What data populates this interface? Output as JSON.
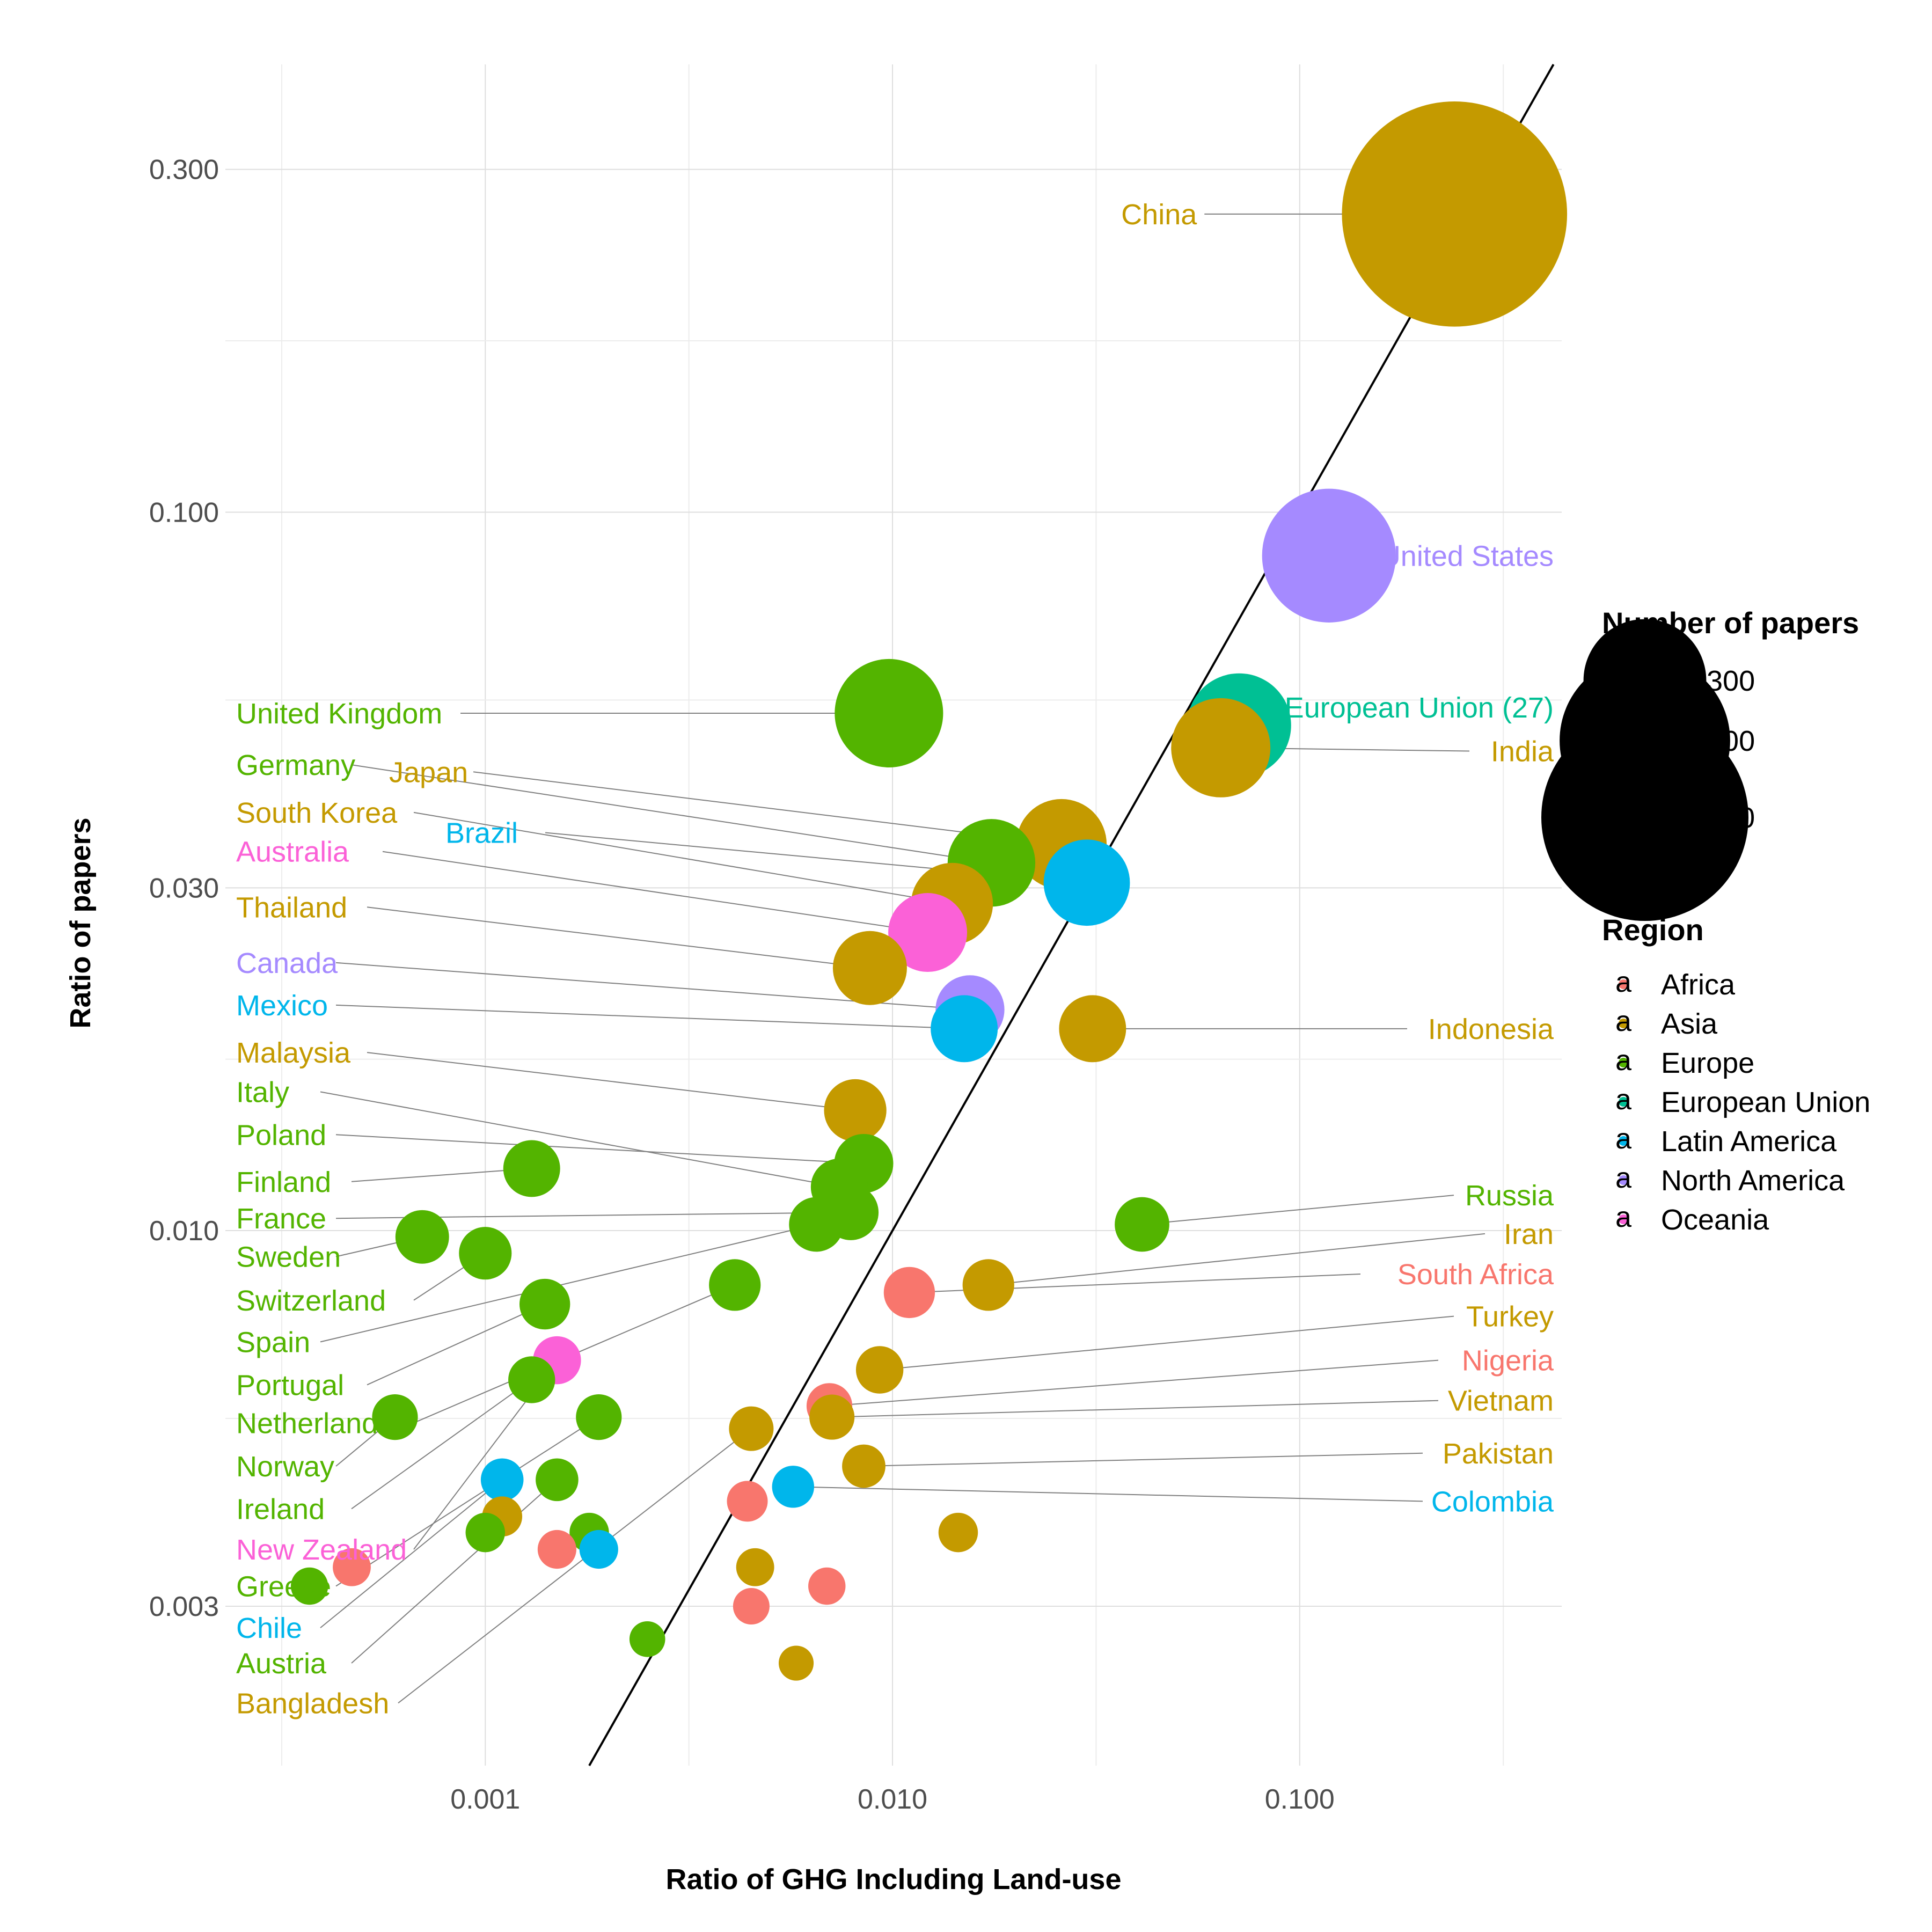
{
  "chart_data": {
    "type": "scatter",
    "title": "",
    "xlabel": "Ratio of GHG Including Land-use",
    "ylabel": "Ratio of papers",
    "x_scale": "log",
    "y_scale": "log",
    "xlim": [
      0.00023,
      0.44
    ],
    "ylim": [
      0.0018,
      0.42
    ],
    "x_ticks": [
      0.001,
      0.01,
      0.1
    ],
    "x_tick_labels": [
      "0.001",
      "0.010",
      "0.100"
    ],
    "y_ticks": [
      0.003,
      0.01,
      0.03,
      0.1,
      0.3
    ],
    "y_tick_labels": [
      "0.003",
      "0.010",
      "0.030",
      "0.100",
      "0.300"
    ],
    "grid": true,
    "reference_line": "y = x",
    "regions": [
      {
        "name": "Africa",
        "color": "#F8766D"
      },
      {
        "name": "Asia",
        "color": "#C49A00"
      },
      {
        "name": "Europe",
        "color": "#53B400"
      },
      {
        "name": "European Union",
        "color": "#00C094"
      },
      {
        "name": "Latin America",
        "color": "#00B6EB"
      },
      {
        "name": "North America",
        "color": "#A58AFF"
      },
      {
        "name": "Oceania",
        "color": "#FB61D7"
      }
    ],
    "legend": {
      "size_title": "Number of papers",
      "size_breaks": [
        300,
        600,
        900
      ],
      "size_labels": [
        "300",
        "600",
        "900"
      ],
      "color_title": "Region",
      "key_glyph": "a",
      "position": "right"
    },
    "points": [
      {
        "label": "China",
        "region": "Asia",
        "x": 0.24,
        "y": 0.26,
        "papers": 1070
      },
      {
        "label": "United States",
        "region": "North America",
        "x": 0.118,
        "y": 0.087,
        "papers": 360
      },
      {
        "label": "European Union (27)",
        "region": "European Union",
        "x": 0.071,
        "y": 0.0505,
        "papers": 210
      },
      {
        "label": "India",
        "region": "Asia",
        "x": 0.064,
        "y": 0.047,
        "papers": 190
      },
      {
        "label": "United Kingdom",
        "region": "Europe",
        "x": 0.0098,
        "y": 0.0525,
        "papers": 230
      },
      {
        "label": "Japan",
        "region": "Asia",
        "x": 0.026,
        "y": 0.0345,
        "papers": 155
      },
      {
        "label": "Germany",
        "region": "Europe",
        "x": 0.0175,
        "y": 0.0325,
        "papers": 145
      },
      {
        "label": "Brazil",
        "region": "Latin America",
        "x": 0.03,
        "y": 0.0305,
        "papers": 140
      },
      {
        "label": "South Korea",
        "region": "Asia",
        "x": 0.014,
        "y": 0.0285,
        "papers": 125
      },
      {
        "label": "Australia",
        "region": "Oceania",
        "x": 0.0122,
        "y": 0.026,
        "papers": 115
      },
      {
        "label": "Thailand",
        "region": "Asia",
        "x": 0.0088,
        "y": 0.0232,
        "papers": 100
      },
      {
        "label": "Canada",
        "region": "North America",
        "x": 0.0155,
        "y": 0.0203,
        "papers": 85
      },
      {
        "label": "Mexico",
        "region": "Latin America",
        "x": 0.015,
        "y": 0.0191,
        "papers": 80
      },
      {
        "label": "Indonesia",
        "region": "Asia",
        "x": 0.031,
        "y": 0.0191,
        "papers": 80
      },
      {
        "label": "Malaysia",
        "region": "Asia",
        "x": 0.0081,
        "y": 0.0147,
        "papers": 68
      },
      {
        "label": "Poland",
        "region": "Europe",
        "x": 0.0085,
        "y": 0.0124,
        "papers": 60
      },
      {
        "label": "Italy",
        "region": "Europe",
        "x": 0.0074,
        "y": 0.0115,
        "papers": 55
      },
      {
        "label": "Finland",
        "region": "Europe",
        "x": 0.0013,
        "y": 0.0122,
        "papers": 55
      },
      {
        "label": "France",
        "region": "Europe",
        "x": 0.0079,
        "y": 0.0106,
        "papers": 52
      },
      {
        "label": "Spain",
        "region": "Europe",
        "x": 0.0065,
        "y": 0.0102,
        "papers": 50
      },
      {
        "label": "Sweden",
        "region": "Europe",
        "x": 0.0007,
        "y": 0.0098,
        "papers": 48
      },
      {
        "label": "Russia",
        "region": "Europe",
        "x": 0.041,
        "y": 0.0102,
        "papers": 50
      },
      {
        "label": "Switzerland",
        "region": "Europe",
        "x": 0.001,
        "y": 0.0093,
        "papers": 46
      },
      {
        "label": "Portugal",
        "region": "Europe",
        "x": 0.0014,
        "y": 0.0079,
        "papers": 42
      },
      {
        "label": "Netherlands",
        "region": "Europe",
        "x": 0.0041,
        "y": 0.0084,
        "papers": 44
      },
      {
        "label": "Iran",
        "region": "Asia",
        "x": 0.0172,
        "y": 0.0084,
        "papers": 44
      },
      {
        "label": "South Africa",
        "region": "Africa",
        "x": 0.011,
        "y": 0.0082,
        "papers": 43
      },
      {
        "label": "Turkey",
        "region": "Asia",
        "x": 0.0093,
        "y": 0.0064,
        "papers": 36
      },
      {
        "label": "New Zealand",
        "region": "Oceania",
        "x": 0.0015,
        "y": 0.0066,
        "papers": 37
      },
      {
        "label": "Ireland",
        "region": "Europe",
        "x": 0.0013,
        "y": 0.0062,
        "papers": 35
      },
      {
        "label": "Norway",
        "region": "Europe",
        "x": 0.0006,
        "y": 0.0055,
        "papers": 33
      },
      {
        "label": "Greece",
        "region": "Europe",
        "x": 0.0019,
        "y": 0.0055,
        "papers": 33
      },
      {
        "label": "Nigeria",
        "region": "Africa",
        "x": 0.007,
        "y": 0.0057,
        "papers": 33
      },
      {
        "label": "Vietnam",
        "region": "Asia",
        "x": 0.0071,
        "y": 0.0055,
        "papers": 32
      },
      {
        "label": "Bangladesh",
        "region": "Asia",
        "x": 0.0045,
        "y": 0.0053,
        "papers": 31
      },
      {
        "label": "Pakistan",
        "region": "Asia",
        "x": 0.0085,
        "y": 0.0047,
        "papers": 29
      },
      {
        "label": "Austria",
        "region": "Europe",
        "x": 0.0015,
        "y": 0.0045,
        "papers": 28
      },
      {
        "label": "Chile",
        "region": "Latin America",
        "x": 0.0011,
        "y": 0.0045,
        "papers": 28
      },
      {
        "label": "Colombia",
        "region": "Latin America",
        "x": 0.0057,
        "y": 0.0044,
        "papers": 27
      },
      {
        "label": "",
        "region": "Africa",
        "x": 0.0044,
        "y": 0.0042,
        "papers": 25
      },
      {
        "label": "",
        "region": "Asia",
        "x": 0.0011,
        "y": 0.004,
        "papers": 24
      },
      {
        "label": "",
        "region": "Europe",
        "x": 0.001,
        "y": 0.0038,
        "papers": 23
      },
      {
        "label": "",
        "region": "Europe",
        "x": 0.0018,
        "y": 0.0038,
        "papers": 23
      },
      {
        "label": "",
        "region": "Asia",
        "x": 0.0145,
        "y": 0.0038,
        "papers": 23
      },
      {
        "label": "",
        "region": "Africa",
        "x": 0.0015,
        "y": 0.0036,
        "papers": 22
      },
      {
        "label": "",
        "region": "Latin America",
        "x": 0.0019,
        "y": 0.0036,
        "papers": 22
      },
      {
        "label": "",
        "region": "Africa",
        "x": 0.00047,
        "y": 0.0034,
        "papers": 21
      },
      {
        "label": "",
        "region": "Asia",
        "x": 0.0046,
        "y": 0.0034,
        "papers": 21
      },
      {
        "label": "",
        "region": "Europe",
        "x": 0.00037,
        "y": 0.0032,
        "papers": 20
      },
      {
        "label": "",
        "region": "Africa",
        "x": 0.0069,
        "y": 0.0032,
        "papers": 20
      },
      {
        "label": "",
        "region": "Africa",
        "x": 0.0045,
        "y": 0.003,
        "papers": 19
      },
      {
        "label": "",
        "region": "Europe",
        "x": 0.0025,
        "y": 0.0027,
        "papers": 18
      },
      {
        "label": "",
        "region": "Asia",
        "x": 0.0058,
        "y": 0.0025,
        "papers": 17
      }
    ],
    "labels": [
      {
        "label": "China",
        "region": "Asia",
        "side": "left",
        "y": 0.26
      },
      {
        "label": "United States",
        "region": "North America",
        "side": "right",
        "y": 0.087
      },
      {
        "label": "European Union (27)",
        "region": "European Union",
        "side": "right",
        "y": 0.0535
      },
      {
        "label": "India",
        "region": "Asia",
        "side": "right",
        "y": 0.0465
      },
      {
        "label": "United Kingdom",
        "region": "Europe",
        "side": "left",
        "y": 0.0525
      },
      {
        "label": "Germany",
        "region": "Europe",
        "side": "left",
        "y": 0.0445
      },
      {
        "label": "Japan",
        "region": "Asia",
        "side": "left",
        "y": 0.0435,
        "indent": true
      },
      {
        "label": "South Korea",
        "region": "Asia",
        "side": "left",
        "y": 0.0382
      },
      {
        "label": "Brazil",
        "region": "Latin America",
        "side": "left",
        "y": 0.0358,
        "indent": true
      },
      {
        "label": "Australia",
        "region": "Oceania",
        "side": "left",
        "y": 0.0337
      },
      {
        "label": "Thailand",
        "region": "Asia",
        "side": "left",
        "y": 0.0282
      },
      {
        "label": "Canada",
        "region": "North America",
        "side": "left",
        "y": 0.0236
      },
      {
        "label": "Mexico",
        "region": "Latin America",
        "side": "left",
        "y": 0.0206
      },
      {
        "label": "Indonesia",
        "region": "Asia",
        "side": "right",
        "y": 0.0191
      },
      {
        "label": "Malaysia",
        "region": "Asia",
        "side": "left",
        "y": 0.0177
      },
      {
        "label": "Italy",
        "region": "Europe",
        "side": "left",
        "y": 0.0156
      },
      {
        "label": "Poland",
        "region": "Europe",
        "side": "left",
        "y": 0.0136
      },
      {
        "label": "Finland",
        "region": "Europe",
        "side": "left",
        "y": 0.0117
      },
      {
        "label": "France",
        "region": "Europe",
        "side": "left",
        "y": 0.0104
      },
      {
        "label": "Sweden",
        "region": "Europe",
        "side": "left",
        "y": 0.0092
      },
      {
        "label": "Russia",
        "region": "Europe",
        "side": "right",
        "y": 0.0112
      },
      {
        "label": "Switzerland",
        "region": "Europe",
        "side": "left",
        "y": 0.008
      },
      {
        "label": "Iran",
        "region": "Asia",
        "side": "right",
        "y": 0.0099
      },
      {
        "label": "South Africa",
        "region": "Africa",
        "side": "right",
        "y": 0.0087
      },
      {
        "label": "Spain",
        "region": "Europe",
        "side": "left",
        "y": 0.007
      },
      {
        "label": "Turkey",
        "region": "Asia",
        "side": "right",
        "y": 0.0076
      },
      {
        "label": "Portugal",
        "region": "Europe",
        "side": "left",
        "y": 0.0061
      },
      {
        "label": "Nigeria",
        "region": "Africa",
        "side": "right",
        "y": 0.0066
      },
      {
        "label": "Netherlands",
        "region": "Europe",
        "side": "left",
        "y": 0.0054
      },
      {
        "label": "Vietnam",
        "region": "Asia",
        "side": "right",
        "y": 0.0058
      },
      {
        "label": "Norway",
        "region": "Europe",
        "side": "left",
        "y": 0.0047
      },
      {
        "label": "Pakistan",
        "region": "Asia",
        "side": "right",
        "y": 0.0049
      },
      {
        "label": "Ireland",
        "region": "Europe",
        "side": "left",
        "y": 0.0041
      },
      {
        "label": "Colombia",
        "region": "Latin America",
        "side": "right",
        "y": 0.0042
      },
      {
        "label": "New Zealand",
        "region": "Oceania",
        "side": "left",
        "y": 0.0036
      },
      {
        "label": "Greece",
        "region": "Europe",
        "side": "left",
        "y": 0.0032
      },
      {
        "label": "Chile",
        "region": "Latin America",
        "side": "left",
        "y": 0.0028
      },
      {
        "label": "Austria",
        "region": "Europe",
        "side": "left",
        "y": 0.0025
      },
      {
        "label": "Bangladesh",
        "region": "Asia",
        "side": "left",
        "y": 0.0022
      }
    ]
  }
}
